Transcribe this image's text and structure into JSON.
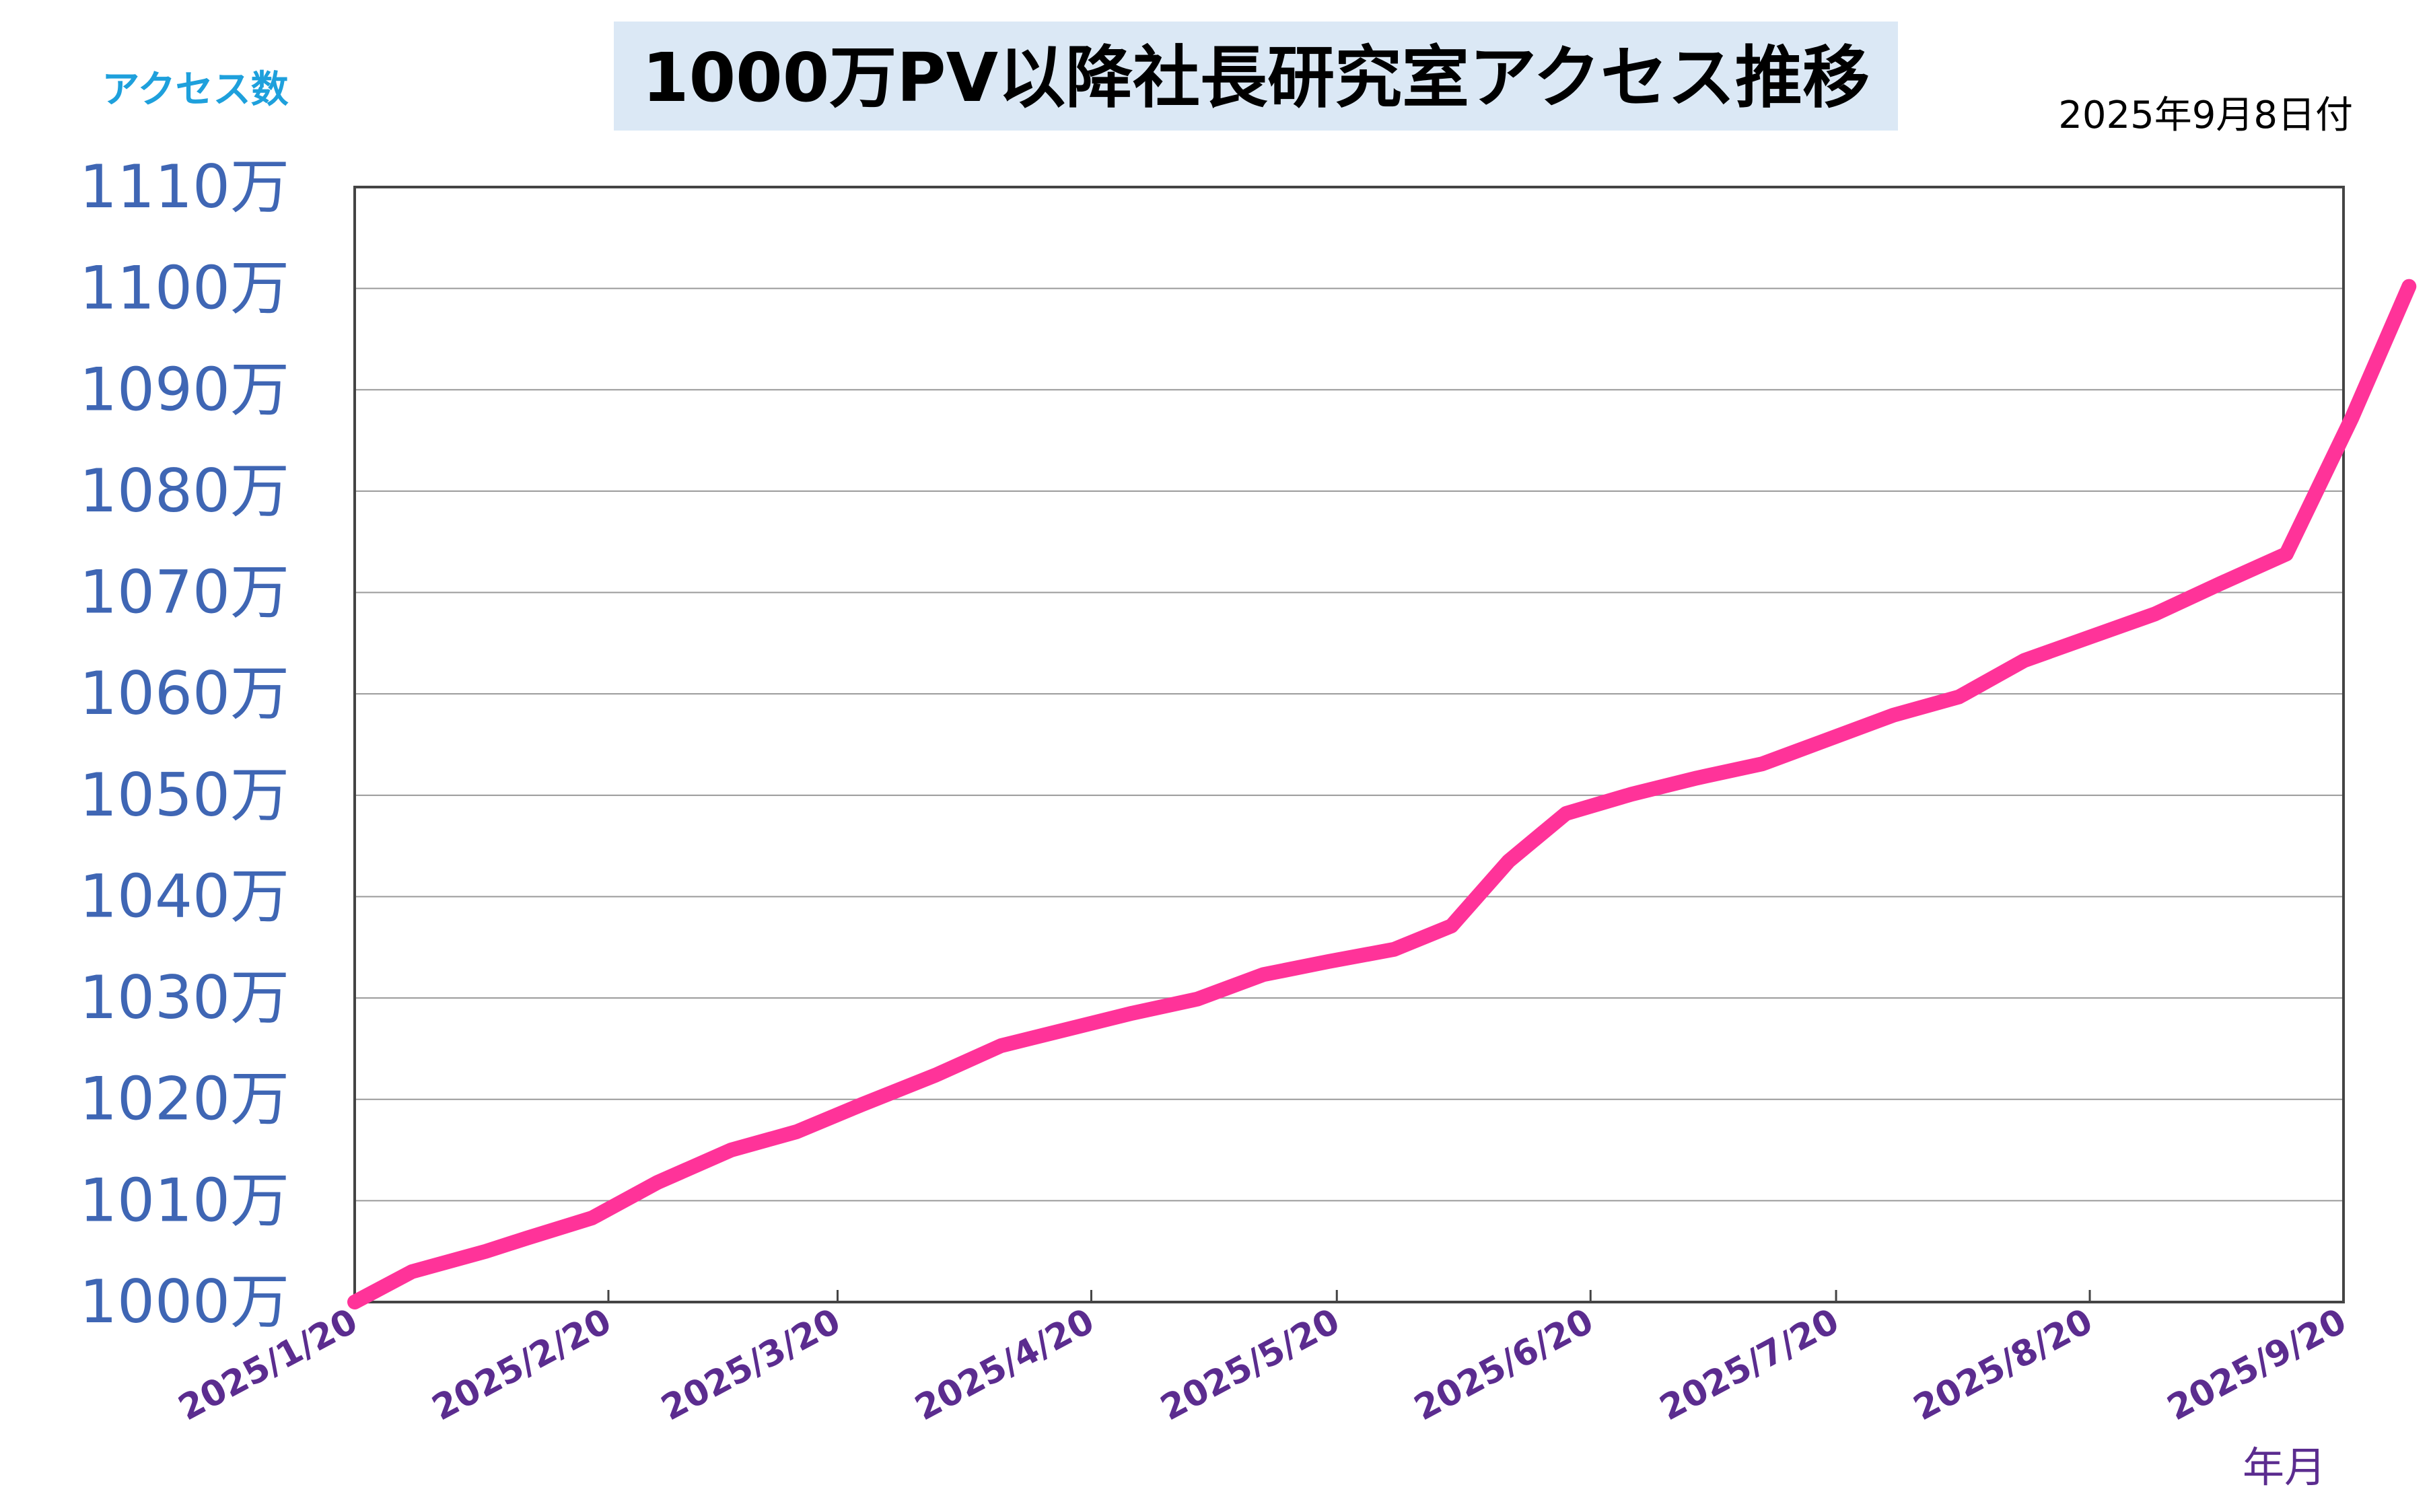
{
  "chart_data": {
    "type": "line",
    "title": "1000万PV以降社長研究室アクセス推移",
    "date_note": "2025年9月8日付",
    "ylabel": "アクセス数",
    "xlabel": "年月",
    "ylim": [
      1000,
      1110
    ],
    "xlim": [
      "2025/1/20",
      "2025/9/20"
    ],
    "y_ticks": [
      {
        "value": 1000,
        "label": "1000万"
      },
      {
        "value": 1010,
        "label": "1010万"
      },
      {
        "value": 1020,
        "label": "1020万"
      },
      {
        "value": 1030,
        "label": "1030万"
      },
      {
        "value": 1040,
        "label": "1040万"
      },
      {
        "value": 1050,
        "label": "1050万"
      },
      {
        "value": 1060,
        "label": "1060万"
      },
      {
        "value": 1070,
        "label": "1070万"
      },
      {
        "value": 1080,
        "label": "1080万"
      },
      {
        "value": 1090,
        "label": "1090万"
      },
      {
        "value": 1100,
        "label": "1100万"
      },
      {
        "value": 1110,
        "label": "1110万"
      }
    ],
    "x_ticks": [
      "2025/1/20",
      "2025/2/20",
      "2025/3/20",
      "2025/4/20",
      "2025/5/20",
      "2025/6/20",
      "2025/7/20",
      "2025/8/20",
      "2025/9/20"
    ],
    "grid": true,
    "series": [
      {
        "color": "#ff3399",
        "points": [
          {
            "x": "2025/1/20",
            "y": 1000.0
          },
          {
            "x": "2025/1/27",
            "y": 1003.0
          },
          {
            "x": "2025/2/5",
            "y": 1005.0
          },
          {
            "x": "2025/2/10",
            "y": 1006.3
          },
          {
            "x": "2025/2/18",
            "y": 1008.3
          },
          {
            "x": "2025/2/26",
            "y": 1011.8
          },
          {
            "x": "2025/3/7",
            "y": 1015.0
          },
          {
            "x": "2025/3/15",
            "y": 1016.8
          },
          {
            "x": "2025/3/23",
            "y": 1019.5
          },
          {
            "x": "2025/4/1",
            "y": 1022.4
          },
          {
            "x": "2025/4/9",
            "y": 1025.3
          },
          {
            "x": "2025/4/17",
            "y": 1026.9
          },
          {
            "x": "2025/4/25",
            "y": 1028.5
          },
          {
            "x": "2025/5/3",
            "y": 1029.9
          },
          {
            "x": "2025/5/11",
            "y": 1032.3
          },
          {
            "x": "2025/5/19",
            "y": 1033.6
          },
          {
            "x": "2025/5/27",
            "y": 1034.8
          },
          {
            "x": "2025/6/3",
            "y": 1037.1
          },
          {
            "x": "2025/6/10",
            "y": 1043.5
          },
          {
            "x": "2025/6/17",
            "y": 1048.2
          },
          {
            "x": "2025/6/25",
            "y": 1050.1
          },
          {
            "x": "2025/7/3",
            "y": 1051.7
          },
          {
            "x": "2025/7/11",
            "y": 1053.1
          },
          {
            "x": "2025/7/18",
            "y": 1055.2
          },
          {
            "x": "2025/7/27",
            "y": 1057.9
          },
          {
            "x": "2025/8/4",
            "y": 1059.7
          },
          {
            "x": "2025/8/12",
            "y": 1063.3
          },
          {
            "x": "2025/8/20",
            "y": 1065.6
          },
          {
            "x": "2025/8/28",
            "y": 1067.9
          },
          {
            "x": "2025/9/5",
            "y": 1070.9
          },
          {
            "x": "2025/9/13",
            "y": 1073.8
          },
          {
            "x": "2025/9/21",
            "y": 1087.2
          },
          {
            "x": "2025/9/28",
            "y": 1100.2
          }
        ]
      }
    ]
  }
}
